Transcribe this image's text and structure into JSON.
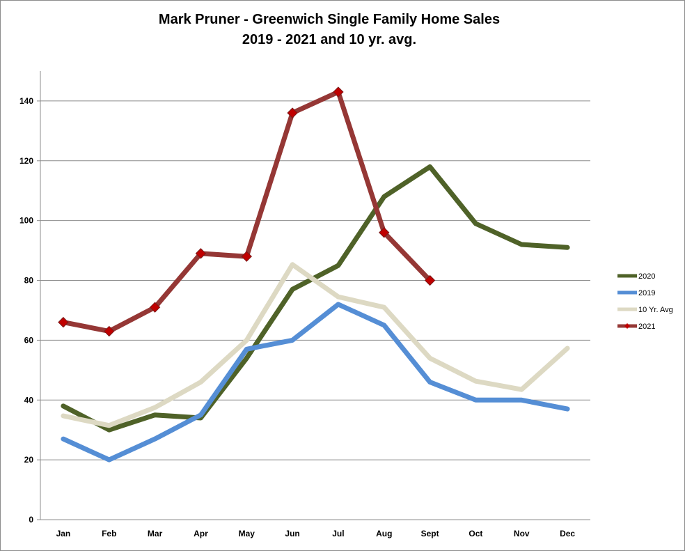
{
  "chart_data": {
    "type": "line",
    "title": "Mark Pruner - Greenwich Single Family Home Sales",
    "subtitle": "2019 - 2021 and 10 yr. avg.",
    "xlabel": "",
    "ylabel": "",
    "categories": [
      "Jan",
      "Feb",
      "Mar",
      "Apr",
      "May",
      "Jun",
      "Jul",
      "Aug",
      "Sept",
      "Oct",
      "Nov",
      "Dec"
    ],
    "ylim": [
      0,
      150
    ],
    "yticks": [
      0,
      20,
      40,
      60,
      80,
      100,
      120,
      140
    ],
    "grid": true,
    "legend_position": "right",
    "series": [
      {
        "name": "2020",
        "color": "#4f6228",
        "marker": "none",
        "values": [
          38,
          30,
          35,
          34,
          54,
          77,
          85,
          108,
          118,
          99,
          92,
          91
        ]
      },
      {
        "name": "2019",
        "color": "#558ed5",
        "marker": "none",
        "values": [
          27,
          20,
          27,
          35,
          57,
          60,
          72,
          65,
          46,
          40,
          40,
          37
        ]
      },
      {
        "name": "10 Yr. Avg",
        "color": "#ddd9c3",
        "marker": "none",
        "values": [
          34.7,
          31.5,
          37.5,
          46,
          60,
          85.3,
          74.5,
          71,
          54,
          46.3,
          43.5,
          57.3
        ]
      },
      {
        "name": "2021",
        "color": "#953735",
        "marker": "diamond",
        "marker_color": "#c00000",
        "values": [
          66,
          63,
          71,
          89,
          88,
          136,
          143,
          96,
          80,
          null,
          null,
          null
        ]
      }
    ]
  }
}
